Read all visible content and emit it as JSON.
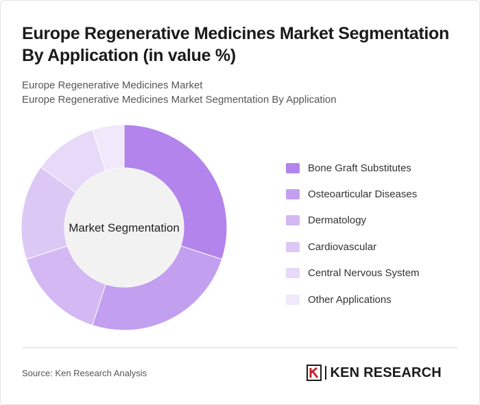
{
  "title": "Europe Regenerative Medicines Market Segmentation By Application (in value %)",
  "subtitle_line1": "Europe Regenerative Medicines Market",
  "subtitle_line2": "Europe Regenerative Medicines Market Segmentation By Application",
  "source": "Source: Ken Research Analysis",
  "brand": {
    "name": "KEN RESEARCH",
    "logo_icon": "ken-research-k-logo"
  },
  "chart_data": {
    "type": "pie",
    "donut": true,
    "center_label": "Market Segmentation",
    "legend_position": "right",
    "categories": [
      "Bone Graft Substitutes",
      "Osteoarticular Diseases",
      "Dermatology",
      "Cardiovascular",
      "Central Nervous System",
      "Other Applications"
    ],
    "values": [
      30,
      25,
      15,
      15,
      10,
      5
    ],
    "colors": [
      "#b284ec",
      "#c39ff0",
      "#d3b8f3",
      "#dcc8f5",
      "#e7d9f8",
      "#f1e9fb"
    ]
  }
}
